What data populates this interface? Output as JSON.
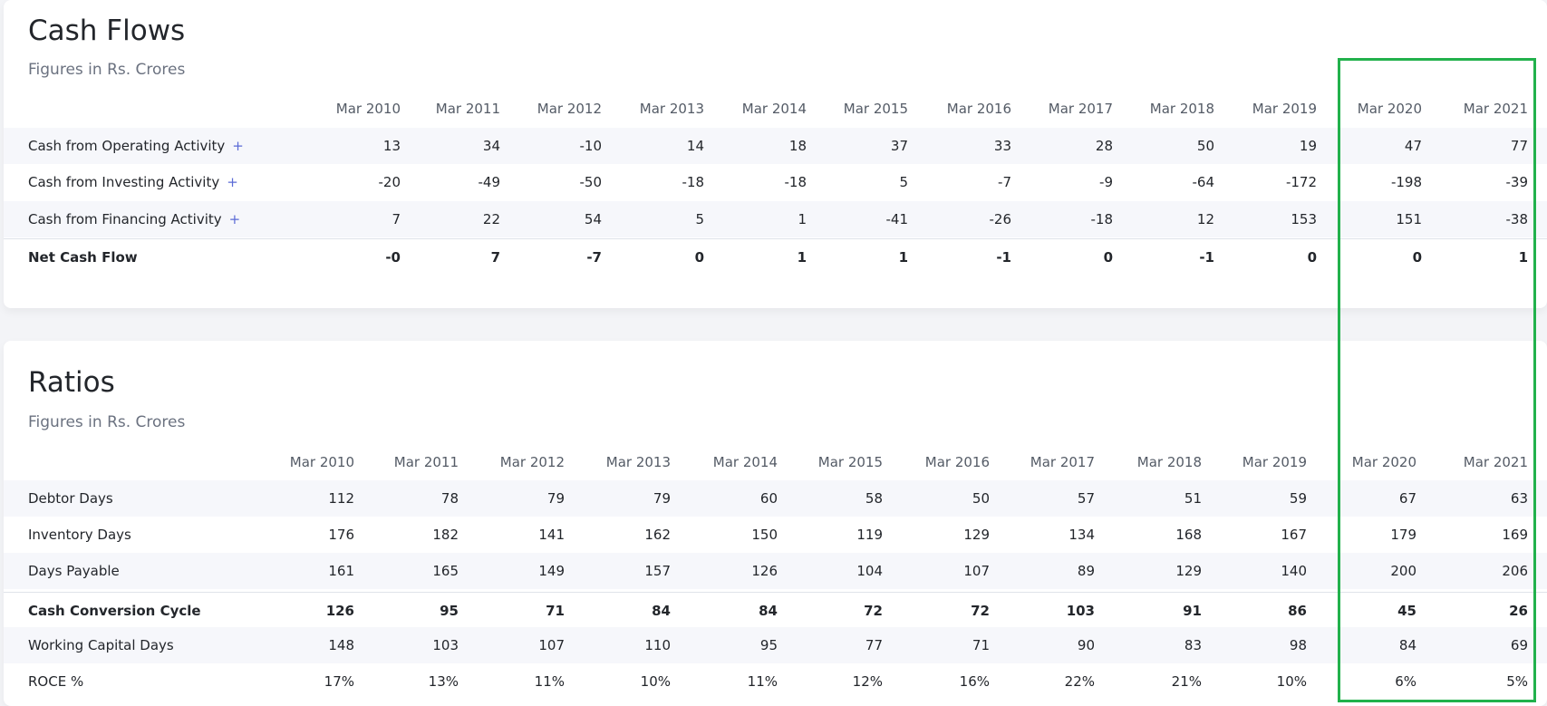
{
  "sections": [
    {
      "title": "Cash Flows",
      "subtitle": "Figures in Rs. Crores",
      "columns": [
        "Mar 2010",
        "Mar 2011",
        "Mar 2012",
        "Mar 2013",
        "Mar 2014",
        "Mar 2015",
        "Mar 2016",
        "Mar 2017",
        "Mar 2018",
        "Mar 2019",
        "Mar 2020",
        "Mar 2021"
      ],
      "rows": [
        {
          "label": "Cash from Operating Activity",
          "toggle": "+",
          "values": [
            "13",
            "34",
            "-10",
            "14",
            "18",
            "37",
            "33",
            "28",
            "50",
            "19",
            "47",
            "77"
          ]
        },
        {
          "label": "Cash from Investing Activity",
          "toggle": "+",
          "values": [
            "-20",
            "-49",
            "-50",
            "-18",
            "-18",
            "5",
            "-7",
            "-9",
            "-64",
            "-172",
            "-198",
            "-39"
          ]
        },
        {
          "label": "Cash from Financing Activity",
          "toggle": "+",
          "values": [
            "7",
            "22",
            "54",
            "5",
            "1",
            "-41",
            "-26",
            "-18",
            "12",
            "153",
            "151",
            "-38"
          ]
        },
        {
          "label": "Net Cash Flow",
          "bold": true,
          "values": [
            "-0",
            "7",
            "-7",
            "0",
            "1",
            "1",
            "-1",
            "0",
            "-1",
            "0",
            "0",
            "1"
          ]
        }
      ]
    },
    {
      "title": "Ratios",
      "subtitle": "Figures in Rs. Crores",
      "columns": [
        "Mar 2010",
        "Mar 2011",
        "Mar 2012",
        "Mar 2013",
        "Mar 2014",
        "Mar 2015",
        "Mar 2016",
        "Mar 2017",
        "Mar 2018",
        "Mar 2019",
        "Mar 2020",
        "Mar 2021"
      ],
      "rows": [
        {
          "label": "Debtor Days",
          "values": [
            "112",
            "78",
            "79",
            "79",
            "60",
            "58",
            "50",
            "57",
            "51",
            "59",
            "67",
            "63"
          ]
        },
        {
          "label": "Inventory Days",
          "values": [
            "176",
            "182",
            "141",
            "162",
            "150",
            "119",
            "129",
            "134",
            "168",
            "167",
            "179",
            "169"
          ]
        },
        {
          "label": "Days Payable",
          "values": [
            "161",
            "165",
            "149",
            "157",
            "126",
            "104",
            "107",
            "89",
            "129",
            "140",
            "200",
            "206"
          ]
        },
        {
          "label": "Cash Conversion Cycle",
          "bold": true,
          "values": [
            "126",
            "95",
            "71",
            "84",
            "84",
            "72",
            "72",
            "103",
            "91",
            "86",
            "45",
            "26"
          ]
        },
        {
          "label": "Working Capital Days",
          "values": [
            "148",
            "103",
            "107",
            "110",
            "95",
            "77",
            "71",
            "90",
            "83",
            "98",
            "84",
            "69"
          ]
        },
        {
          "label": "ROCE %",
          "values": [
            "17%",
            "13%",
            "11%",
            "10%",
            "11%",
            "12%",
            "16%",
            "22%",
            "21%",
            "10%",
            "6%",
            "5%"
          ]
        }
      ]
    }
  ]
}
